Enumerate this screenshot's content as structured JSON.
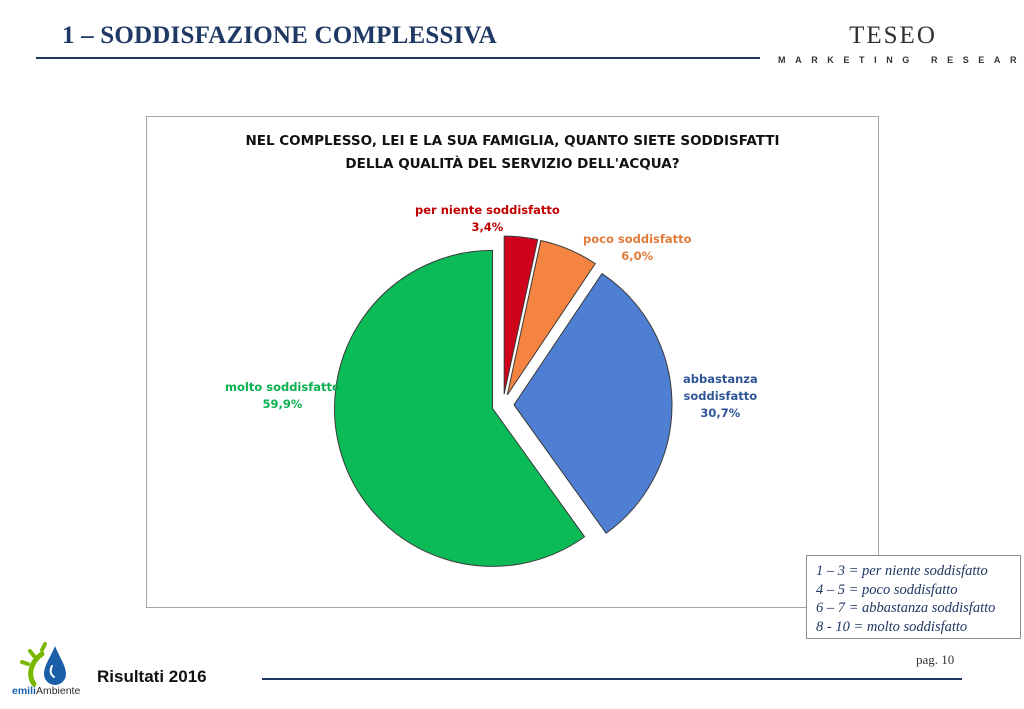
{
  "header": {
    "title": "1 – SODDISFAZIONE COMPLESSIVA",
    "brand_name": "TESEO",
    "brand_tagline": "MARKETING RESEARCH"
  },
  "chart_data": {
    "type": "pie",
    "title_line1": "NEL COMPLESSO, LEI E LA SUA FAMIGLIA, QUANTO SIETE SODDISFATTI",
    "title_line2": "DELLA QUALITÀ DEL SERVIZIO DELL'ACQUA?",
    "slices": [
      {
        "label": "per niente soddisfatto",
        "value": 3.4,
        "value_label": "3,4%",
        "color": "#d0021b"
      },
      {
        "label": "poco soddisfatto",
        "value": 6.0,
        "value_label": "6,0%",
        "color": "#f58442"
      },
      {
        "label": "abbastanza soddisfatto",
        "label_line1": "abbastanza",
        "label_line2": "soddisfatto",
        "value": 30.7,
        "value_label": "30,7%",
        "color": "#4f7fd3"
      },
      {
        "label": "molto soddisfatto",
        "value": 59.9,
        "value_label": "59,9%",
        "color": "#0bbb57"
      }
    ],
    "label_colors": [
      "#c00000",
      "#e07b39",
      "#2f5597",
      "#0bb050"
    ]
  },
  "legend": {
    "items": [
      "1 – 3 = per niente soddisfatto",
      "4 – 5 = poco soddisfatto",
      "6 – 7 = abbastanza soddisfatto",
      "8 - 10 = molto soddisfatto"
    ]
  },
  "footer": {
    "logo_text_a": "emili",
    "logo_text_b": "Ambiente",
    "results": "Risultati 2016",
    "page": "pag. 10"
  }
}
